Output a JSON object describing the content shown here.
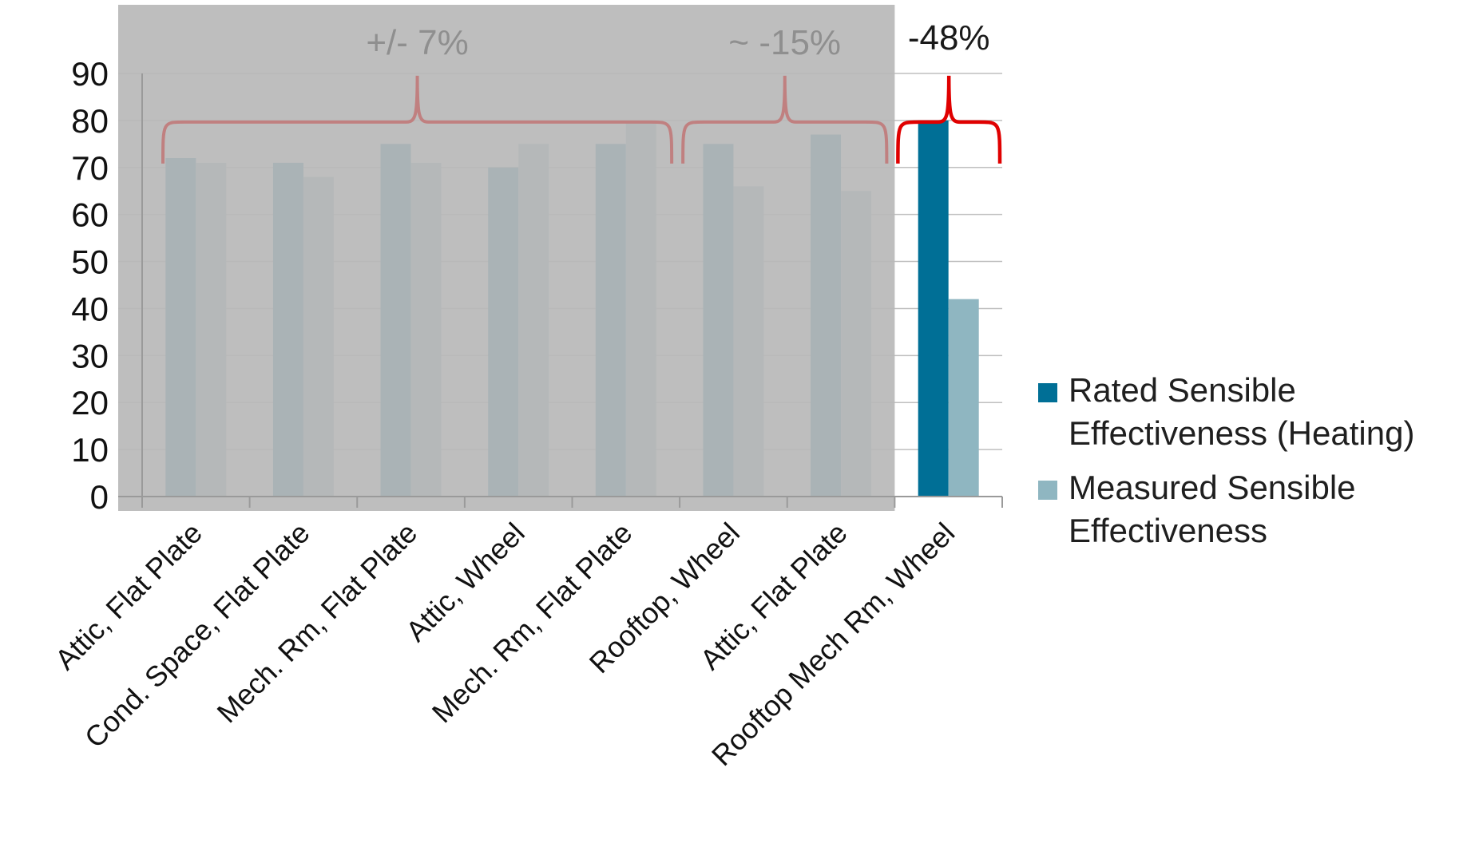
{
  "chart_data": {
    "type": "bar",
    "categories": [
      "Attic, Flat Plate",
      "Cond. Space, Flat Plate",
      "Mech. Rm, Flat Plate",
      "Attic, Wheel",
      "Mech. Rm, Flat Plate",
      "Rooftop, Wheel",
      "Attic, Flat Plate",
      "Rooftop Mech Rm, Wheel"
    ],
    "series": [
      {
        "name": "Rated Sensible Effectiveness (Heating)",
        "values": [
          72,
          71,
          75,
          70,
          75,
          75,
          77,
          80
        ],
        "color": "#006f96"
      },
      {
        "name": "Measured Sensible Effectiveness",
        "values": [
          71,
          68,
          71,
          75,
          80,
          66,
          65,
          42
        ],
        "color": "#8fb6c1"
      }
    ],
    "ylim": [
      0,
      90
    ],
    "yticks": [
      0,
      10,
      20,
      30,
      40,
      50,
      60,
      70,
      80,
      90
    ],
    "grid": true,
    "legend_position": "right",
    "annotations": [
      {
        "text": "+/- 7%",
        "from_category": 0,
        "to_category": 4,
        "bracket_value": 80,
        "color": "#c08080",
        "shaded": true
      },
      {
        "text": "~ -15%",
        "from_category": 5,
        "to_category": 6,
        "bracket_value": 80,
        "color": "#c08080",
        "shaded": true
      },
      {
        "text": "-48%",
        "from_category": 7,
        "to_category": 7,
        "bracket_value": 80,
        "color": "#e00000",
        "shaded": false
      }
    ],
    "shaded_region": {
      "from_category": 0,
      "to_category": 6,
      "color": "#b9b9b9",
      "opacity": 0.92
    }
  }
}
